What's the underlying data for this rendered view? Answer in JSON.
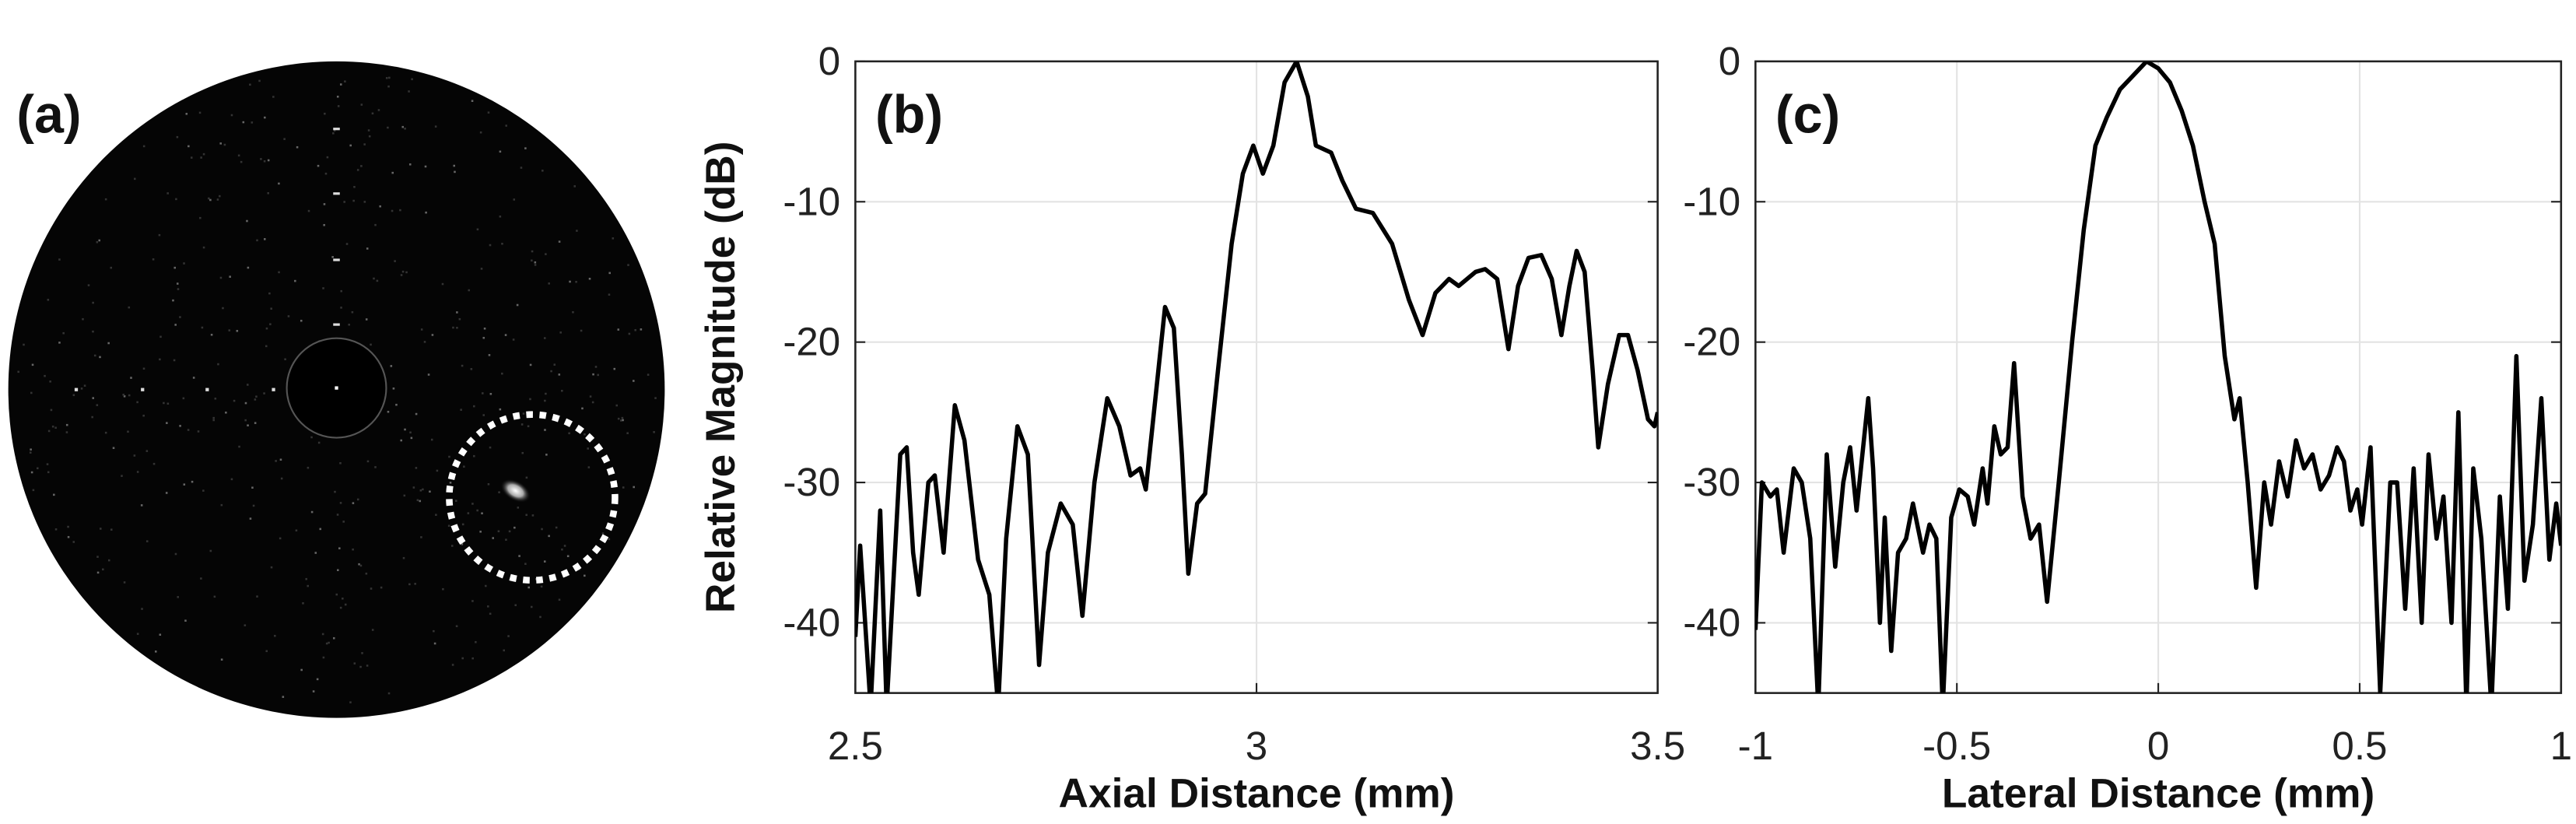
{
  "chart_data": [
    {
      "type": "image",
      "label": "(a)"
    },
    {
      "type": "line",
      "label": "(b)",
      "xlabel": "Axial Distance (mm)",
      "ylabel": "Relative Magnitude (dB)",
      "x": [
        2.5,
        2.506,
        2.519,
        2.531,
        2.539,
        2.556,
        2.564,
        2.572,
        2.579,
        2.591,
        2.599,
        2.61,
        2.624,
        2.636,
        2.653,
        2.667,
        2.678,
        2.688,
        2.702,
        2.715,
        2.729,
        2.74,
        2.756,
        2.771,
        2.783,
        2.798,
        2.814,
        2.829,
        2.843,
        2.855,
        2.862,
        2.874,
        2.886,
        2.897,
        2.907,
        2.915,
        2.926,
        2.936,
        2.952,
        2.969,
        2.983,
        2.996,
        3.008,
        3.021,
        3.035,
        3.05,
        3.064,
        3.074,
        3.093,
        3.107,
        3.124,
        3.145,
        3.169,
        3.19,
        3.207,
        3.223,
        3.24,
        3.252,
        3.273,
        3.285,
        3.3,
        3.314,
        3.326,
        3.339,
        3.355,
        3.368,
        3.38,
        3.39,
        3.399,
        3.409,
        3.419,
        3.426,
        3.438,
        3.452,
        3.463,
        3.475,
        3.488,
        3.496,
        3.5
      ],
      "values": [
        -41,
        -34.5,
        -46,
        -32,
        -46,
        -28,
        -27.5,
        -35,
        -38,
        -30,
        -29.5,
        -35,
        -24.5,
        -27,
        -35.5,
        -38,
        -46,
        -34,
        -26,
        -28,
        -43,
        -35,
        -31.5,
        -33,
        -39.5,
        -30,
        -24,
        -26,
        -29.5,
        -29,
        -30.5,
        -24,
        -17.5,
        -19,
        -28,
        -36.5,
        -31.5,
        -30.8,
        -22,
        -13,
        -8,
        -6,
        -8,
        -6,
        -1.5,
        0,
        -2.5,
        -6,
        -6.5,
        -8.5,
        -10.5,
        -10.8,
        -13,
        -17,
        -19.5,
        -16.5,
        -15.5,
        -16,
        -15,
        -14.8,
        -15.5,
        -20.5,
        -16,
        -14,
        -13.8,
        -15.5,
        -19.5,
        -16,
        -13.5,
        -15,
        -22,
        -27.5,
        -23,
        -19.5,
        -19.5,
        -22,
        -25.5,
        -26,
        -25
      ],
      "color": "#000000",
      "xlim": [
        2.5,
        3.5
      ],
      "ylim": [
        -45,
        0
      ],
      "xticks": [
        2.5,
        3,
        3.5
      ],
      "yticks": [
        0,
        -10,
        -20,
        -30,
        -40
      ],
      "grid": true
    },
    {
      "type": "line",
      "label": "(c)",
      "xlabel": "Lateral Distance (mm)",
      "x": [
        -1.0,
        -0.984,
        -0.963,
        -0.947,
        -0.93,
        -0.905,
        -0.885,
        -0.864,
        -0.844,
        -0.823,
        -0.802,
        -0.782,
        -0.765,
        -0.749,
        -0.72,
        -0.708,
        -0.691,
        -0.679,
        -0.663,
        -0.646,
        -0.626,
        -0.609,
        -0.584,
        -0.568,
        -0.551,
        -0.535,
        -0.514,
        -0.494,
        -0.473,
        -0.457,
        -0.436,
        -0.424,
        -0.407,
        -0.391,
        -0.374,
        -0.358,
        -0.337,
        -0.317,
        -0.296,
        -0.276,
        -0.247,
        -0.214,
        -0.185,
        -0.156,
        -0.128,
        -0.095,
        -0.062,
        -0.029,
        0.0,
        0.029,
        0.058,
        0.086,
        0.115,
        0.14,
        0.165,
        0.189,
        0.202,
        0.222,
        0.243,
        0.263,
        0.28,
        0.3,
        0.321,
        0.342,
        0.362,
        0.383,
        0.403,
        0.424,
        0.444,
        0.461,
        0.477,
        0.494,
        0.506,
        0.527,
        0.551,
        0.576,
        0.593,
        0.613,
        0.634,
        0.654,
        0.671,
        0.691,
        0.708,
        0.728,
        0.745,
        0.765,
        0.782,
        0.802,
        0.827,
        0.848,
        0.868,
        0.889,
        0.909,
        0.93,
        0.951,
        0.971,
        0.988,
        1.0
      ],
      "values": [
        -40.5,
        -30,
        -31,
        -30.5,
        -35,
        -29,
        -30,
        -34,
        -46,
        -28,
        -36,
        -30,
        -27.5,
        -32,
        -24,
        -29,
        -40,
        -32.5,
        -42,
        -35,
        -34,
        -31.5,
        -35,
        -33,
        -34,
        -46,
        -32.5,
        -30.5,
        -31,
        -33,
        -29,
        -31.5,
        -26,
        -28,
        -27.5,
        -21.5,
        -31,
        -34,
        -33,
        -38.5,
        -30,
        -20,
        -12,
        -6,
        -4,
        -2,
        -1,
        0,
        -0.5,
        -1.5,
        -3.5,
        -6,
        -10,
        -13,
        -21,
        -25.5,
        -24,
        -30,
        -37.5,
        -30,
        -33,
        -28.5,
        -31,
        -27,
        -29,
        -28,
        -30.5,
        -29.5,
        -27.5,
        -28.5,
        -32,
        -30.5,
        -33,
        -27.5,
        -45,
        -30,
        -30,
        -39,
        -29,
        -40,
        -28,
        -34,
        -31,
        -40,
        -25,
        -46,
        -29,
        -34,
        -46,
        -31,
        -39,
        -21,
        -37,
        -33,
        -24,
        -35.5,
        -31.5,
        -34.5
      ],
      "color": "#000000",
      "xlim": [
        -1,
        1
      ],
      "ylim": [
        -45,
        0
      ],
      "xticks": [
        -1,
        -0.5,
        0,
        0.5,
        1
      ],
      "yticks": [
        0,
        -10,
        -20,
        -30,
        -40
      ],
      "grid": true
    }
  ]
}
